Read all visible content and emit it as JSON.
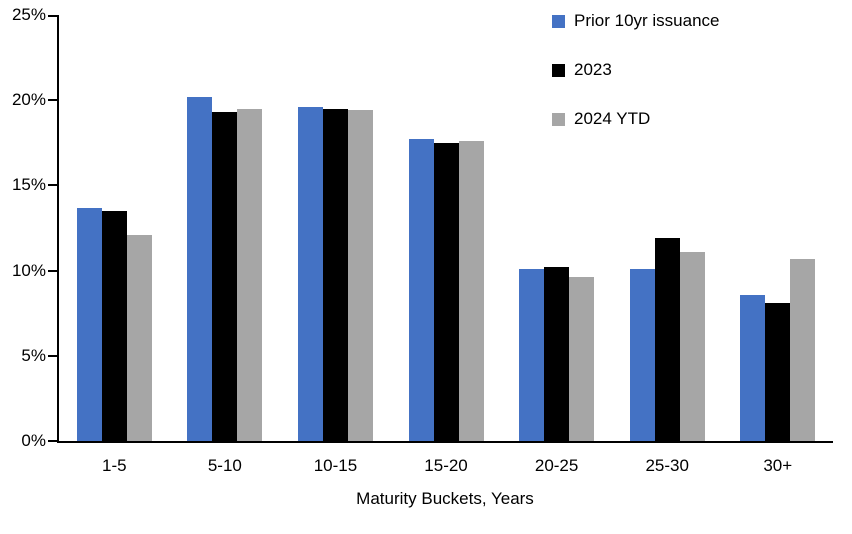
{
  "chart_data": {
    "type": "bar",
    "title": "",
    "categories": [
      "1-5",
      "5-10",
      "10-15",
      "15-20",
      "20-25",
      "25-30",
      "30+"
    ],
    "series": [
      {
        "name": "Prior 10yr issuance",
        "color": "#4472C4",
        "values": [
          13.7,
          20.2,
          19.6,
          17.7,
          10.1,
          10.1,
          8.6
        ]
      },
      {
        "name": "2023",
        "color": "#000000",
        "values": [
          13.5,
          19.3,
          19.5,
          17.5,
          10.2,
          11.9,
          8.1
        ]
      },
      {
        "name": "2024 YTD",
        "color": "#A6A6A6",
        "values": [
          12.1,
          19.5,
          19.4,
          17.6,
          9.6,
          11.1,
          10.7
        ]
      }
    ],
    "xlabel": "Maturity Buckets, Years",
    "ylabel": "",
    "ylim": [
      0,
      25
    ],
    "yticks": [
      0,
      5,
      10,
      15,
      20,
      25
    ],
    "ytick_labels": [
      "0%",
      "5%",
      "10%",
      "15%",
      "20%",
      "25%"
    ],
    "legend_position": "top-right",
    "grid": false,
    "axis_color": "#000000",
    "background_color": "#FFFFFF"
  }
}
